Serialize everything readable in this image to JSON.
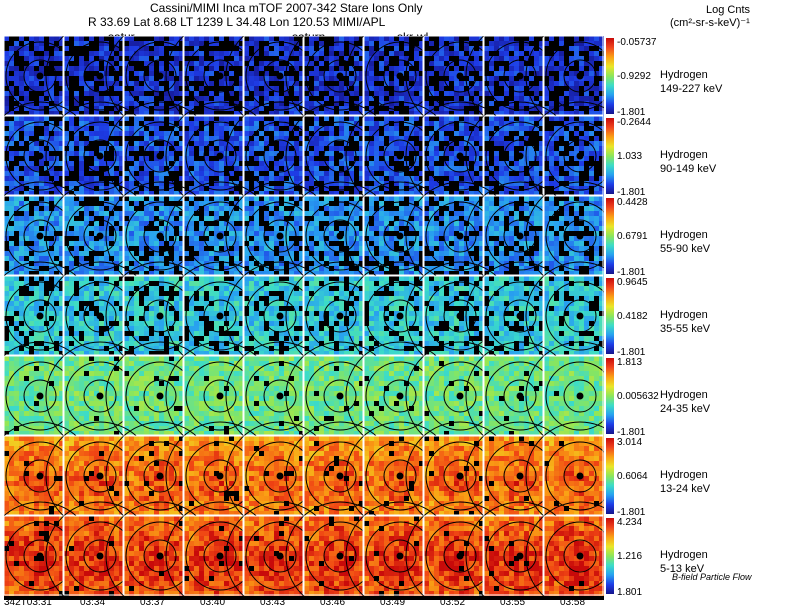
{
  "header": {
    "line1": "Cassini/MIMI Inca mTOF  2007-342   Stare    Ions Only",
    "line2": "R        33.69 Lat 8.68 LT 1239 L       34.48 Lon        120.53   MIMI/APL"
  },
  "frame_labels": [
    "satur",
    "saturn",
    "skr-wl"
  ],
  "legend": {
    "title": "Log Cnts",
    "unit": "(cm²-sr-s-keV)⁻¹"
  },
  "rows": [
    {
      "species": "Hydrogen",
      "energy": "149-227 keV",
      "max": "-0.05737",
      "mid": "-0.9292",
      "min": "-1.801"
    },
    {
      "species": "Hydrogen",
      "energy": "90-149 keV",
      "max": "-0.2644",
      "mid": "1.033",
      "min": "-1.801"
    },
    {
      "species": "Hydrogen",
      "energy": "55-90 keV",
      "max": "0.4428",
      "mid": "0.6791",
      "min": "-1.801"
    },
    {
      "species": "Hydrogen",
      "energy": "35-55 keV",
      "max": "0.9645",
      "mid": "0.4182",
      "min": "-1.801"
    },
    {
      "species": "Hydrogen",
      "energy": "24-35 keV",
      "max": "1.813",
      "mid": "0.005632",
      "min": "-1.801"
    },
    {
      "species": "Hydrogen",
      "energy": "13-24 keV",
      "max": "3.014",
      "mid": "0.6064",
      "min": "-1.801"
    },
    {
      "species": "Hydrogen",
      "energy": "5-13 keV",
      "max": "4.234",
      "mid": "1.216",
      "min": "1.801"
    }
  ],
  "times": [
    "342T03:31",
    "03:34",
    "03:37",
    "03:40",
    "03:43",
    "03:46",
    "03:49",
    "03:52",
    "03:55",
    "03:58"
  ],
  "footer": "B-field  Particle Flow",
  "colors": {
    "background": "#000000",
    "row_levels": [
      0.12,
      0.18,
      0.28,
      0.38,
      0.5,
      0.8,
      0.86
    ]
  }
}
